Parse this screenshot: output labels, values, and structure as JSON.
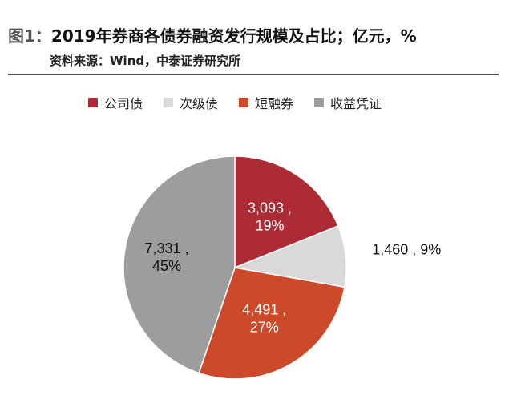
{
  "header": {
    "figure_label": "图1：",
    "title": "2019年券商各债券融资发行规模及占比；亿元，%",
    "source": "资料来源：Wind，中泰证券研究所"
  },
  "chart_data": {
    "type": "pie",
    "unit": "亿元",
    "legend_position": "top",
    "series": [
      {
        "name": "公司债",
        "value": 3093,
        "percent": 19,
        "color": "#ad2b34",
        "label_line1": "3,093 ,",
        "label_line2": "19%",
        "label_color": "#ffffff"
      },
      {
        "name": "次级债",
        "value": 1460,
        "percent": 9,
        "color": "#d9d9d9",
        "label_line1": "1,460 , 9%",
        "label_line2": "",
        "label_color": "#111111"
      },
      {
        "name": "短融券",
        "value": 4491,
        "percent": 27,
        "color": "#cc4a2a",
        "label_line1": "4,491 ,",
        "label_line2": "27%",
        "label_color": "#ffffff"
      },
      {
        "name": "收益凭证",
        "value": 7331,
        "percent": 45,
        "color": "#9d9d9d",
        "label_line1": "7,331 ,",
        "label_line2": "45%",
        "label_color": "#111111"
      }
    ]
  }
}
